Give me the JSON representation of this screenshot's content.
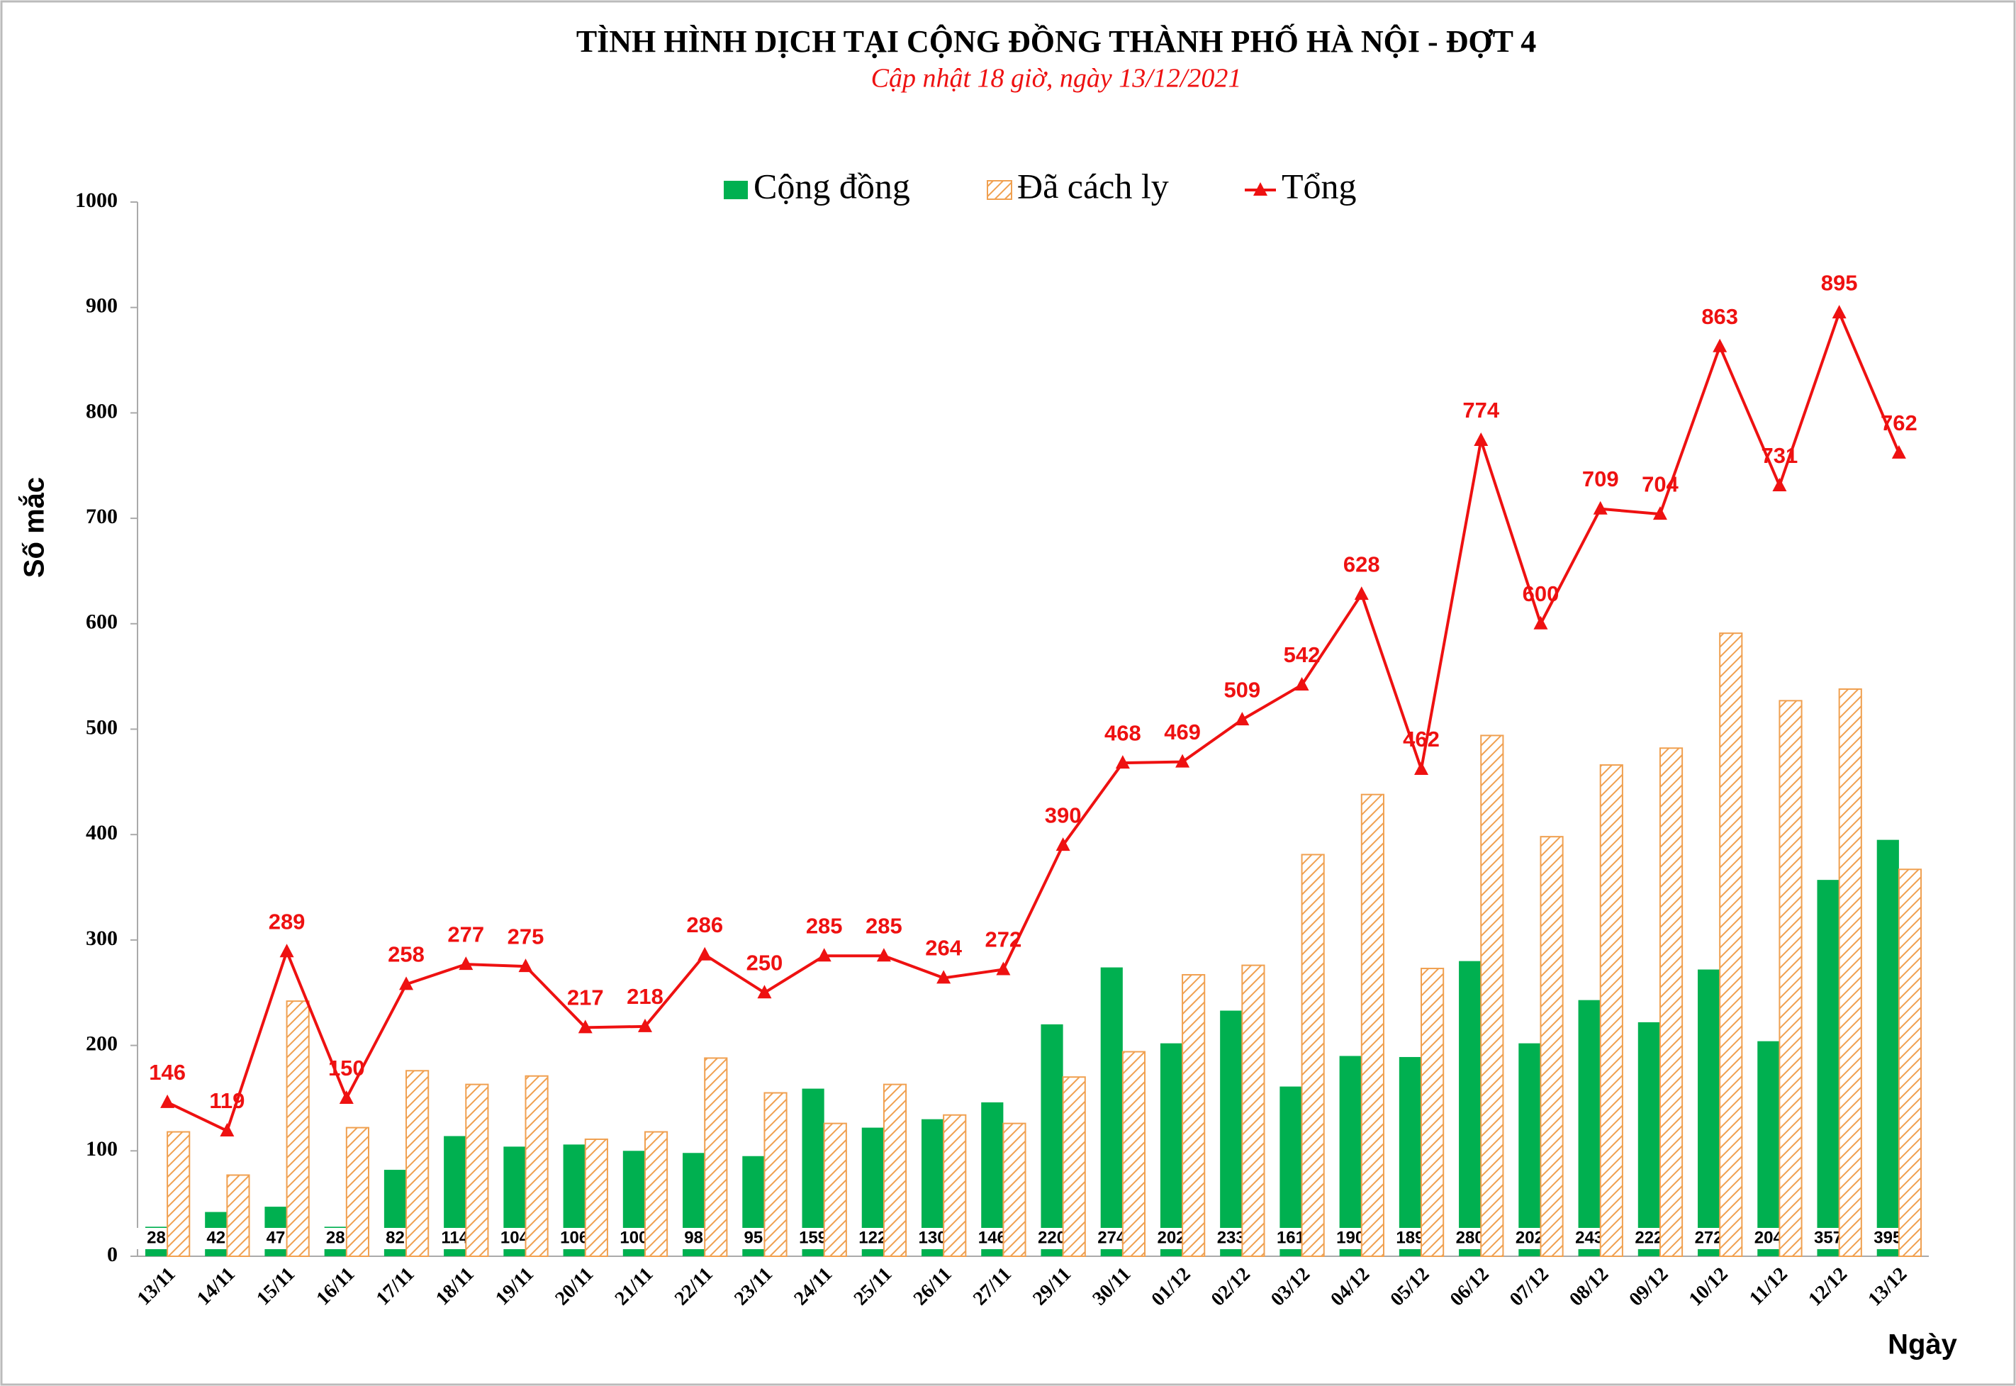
{
  "chart_data": {
    "type": "bar",
    "title": "TÌNH HÌNH DỊCH TẠI CỘNG ĐỒNG THÀNH PHỐ HÀ NỘI - ĐỢT 4",
    "subtitle": "Cập nhật 18 giờ, ngày 13/12/2021",
    "y_label": "Số mắc",
    "x_label": "Ngày",
    "categories": [
      "13/11",
      "14/11",
      "15/11",
      "16/11",
      "17/11",
      "18/11",
      "19/11",
      "20/11",
      "21/11",
      "22/11",
      "23/11",
      "24/11",
      "25/11",
      "26/11",
      "27/11",
      "29/11",
      "30/11",
      "01/12",
      "02/12",
      "03/12",
      "04/12",
      "05/12",
      "06/12",
      "07/12",
      "08/12",
      "09/12",
      "10/12",
      "11/12",
      "12/12",
      "13/12"
    ],
    "series": [
      {
        "name": "Cộng đồng",
        "type": "bar",
        "color": "#00b050",
        "values": [
          28,
          42,
          47,
          28,
          82,
          114,
          104,
          106,
          100,
          98,
          95,
          159,
          122,
          130,
          146,
          220,
          274,
          202,
          233,
          161,
          190,
          189,
          280,
          202,
          243,
          222,
          272,
          204,
          357,
          395
        ]
      },
      {
        "name": "Đã cách ly",
        "type": "bar",
        "color": "#f0a050",
        "hatch": true,
        "values": [
          118,
          77,
          242,
          122,
          176,
          163,
          171,
          111,
          118,
          188,
          155,
          126,
          163,
          134,
          126,
          170,
          194,
          267,
          276,
          381,
          438,
          273,
          494,
          398,
          466,
          482,
          591,
          527,
          538,
          367
        ]
      },
      {
        "name": "Tổng",
        "type": "line",
        "color": "#ee1111",
        "values": [
          146,
          119,
          289,
          150,
          258,
          277,
          275,
          217,
          218,
          286,
          250,
          285,
          285,
          264,
          272,
          390,
          468,
          469,
          509,
          542,
          628,
          462,
          774,
          600,
          709,
          704,
          863,
          731,
          895,
          762
        ]
      }
    ],
    "ylim": [
      0,
      1000
    ],
    "yticks": [
      0,
      100,
      200,
      300,
      400,
      500,
      600,
      700,
      800,
      900,
      1000
    ],
    "grid": false
  }
}
